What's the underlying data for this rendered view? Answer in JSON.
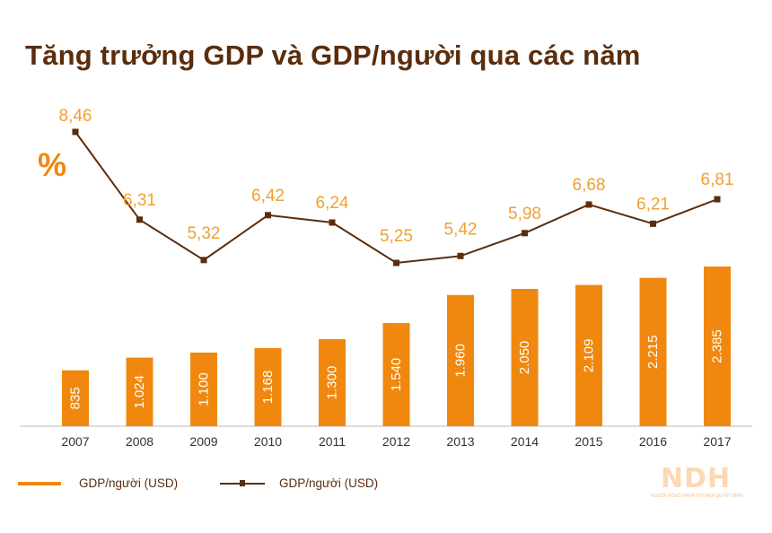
{
  "title": "Tăng trưởng GDP và GDP/người qua các năm",
  "percent_symbol": "%",
  "legend": {
    "bar_label": "GDP/người (USD)",
    "line_label": "GDP/người (USD)"
  },
  "logo": {
    "mark": "NDH",
    "tagline": "NGƯỜI ĐỒNG HÀNH VỚI MỌI QUYẾT ĐỊNH"
  },
  "colors": {
    "bar": "#f0880f",
    "line": "#5a2d0c",
    "title": "#5a2d0c",
    "line_label": "#f0a030",
    "bar_label": "#ffffff",
    "axis": "#bbbbbb"
  },
  "chart_data": {
    "type": "bar+line",
    "title": "Tăng trưởng GDP và GDP/người qua các năm",
    "categories": [
      "2007",
      "2008",
      "2009",
      "2010",
      "2011",
      "2012",
      "2013",
      "2014",
      "2015",
      "2016",
      "2017"
    ],
    "series": [
      {
        "name": "GDP/người (USD)",
        "type": "bar",
        "values": [
          835,
          1024,
          1100,
          1168,
          1300,
          1540,
          1960,
          2050,
          2109,
          2215,
          2385
        ],
        "labels": [
          "835",
          "1.024",
          "1.100",
          "1.168",
          "1.300",
          "1.540",
          "1.960",
          "2.050",
          "2.109",
          "2.215",
          "2.385"
        ]
      },
      {
        "name": "GDP/người (USD)",
        "type": "line",
        "unit": "%",
        "values": [
          8.46,
          6.31,
          5.32,
          6.42,
          6.24,
          5.25,
          5.42,
          5.98,
          6.68,
          6.21,
          6.81
        ],
        "labels": [
          "8,46",
          "6,31",
          "5,32",
          "6,42",
          "6,24",
          "5,25",
          "5,42",
          "5,98",
          "6,68",
          "6,21",
          "6,81"
        ]
      }
    ],
    "bar_ylim": [
      0,
      2385
    ],
    "line_ylim": [
      5.25,
      8.46
    ],
    "grid": false,
    "legend_position": "bottom-left"
  }
}
